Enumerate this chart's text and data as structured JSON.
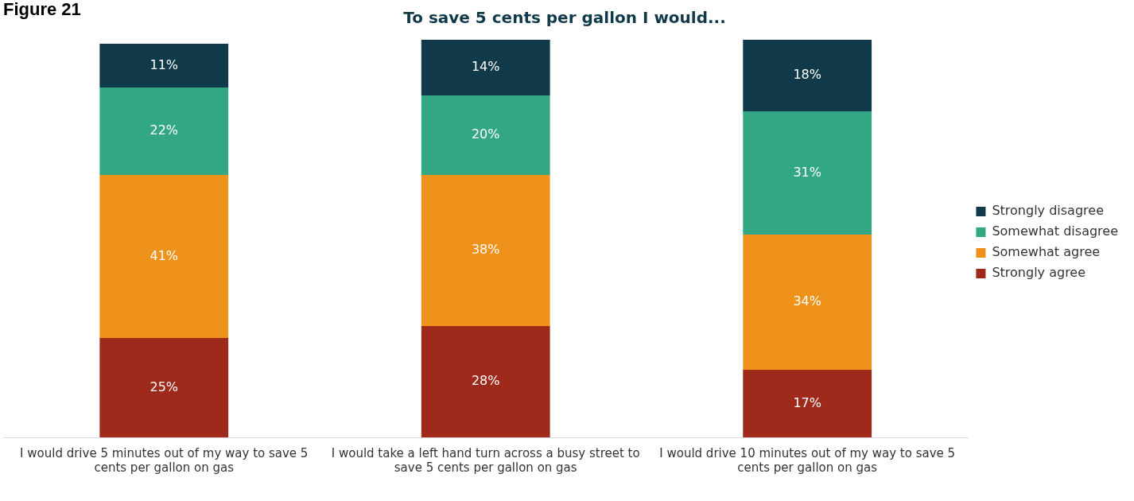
{
  "chart_data": {
    "type": "bar",
    "stacked": true,
    "title": "To save 5 cents per gallon I would...",
    "annotations": [
      "Figure 21"
    ],
    "categories": [
      "I would drive 5 minutes out of my way to save 5 cents per gallon on gas",
      "I would take a left hand turn across a busy street to save 5 cents per gallon on gas",
      "I would drive 10 minutes out of my way to save 5 cents per gallon on gas"
    ],
    "series": [
      {
        "name": "Strongly agree",
        "color": "#9e2a1c",
        "values": [
          25,
          28,
          17
        ],
        "value_labels": [
          "25%",
          "28%",
          "17%"
        ]
      },
      {
        "name": "Somewhat agree",
        "color": "#ef921c",
        "values": [
          41,
          38,
          34
        ],
        "value_labels": [
          "41%",
          "38%",
          "34%"
        ]
      },
      {
        "name": "Somewhat disagree",
        "color": "#33a783",
        "values": [
          22,
          20,
          31
        ],
        "value_labels": [
          "22%",
          "20%",
          "31%"
        ]
      },
      {
        "name": "Strongly disagree",
        "color": "#103a4a",
        "values": [
          11,
          14,
          18
        ],
        "value_labels": [
          "11%",
          "14%",
          "18%"
        ]
      }
    ],
    "legend": "right",
    "grid": false,
    "tick_labels": "x"
  }
}
